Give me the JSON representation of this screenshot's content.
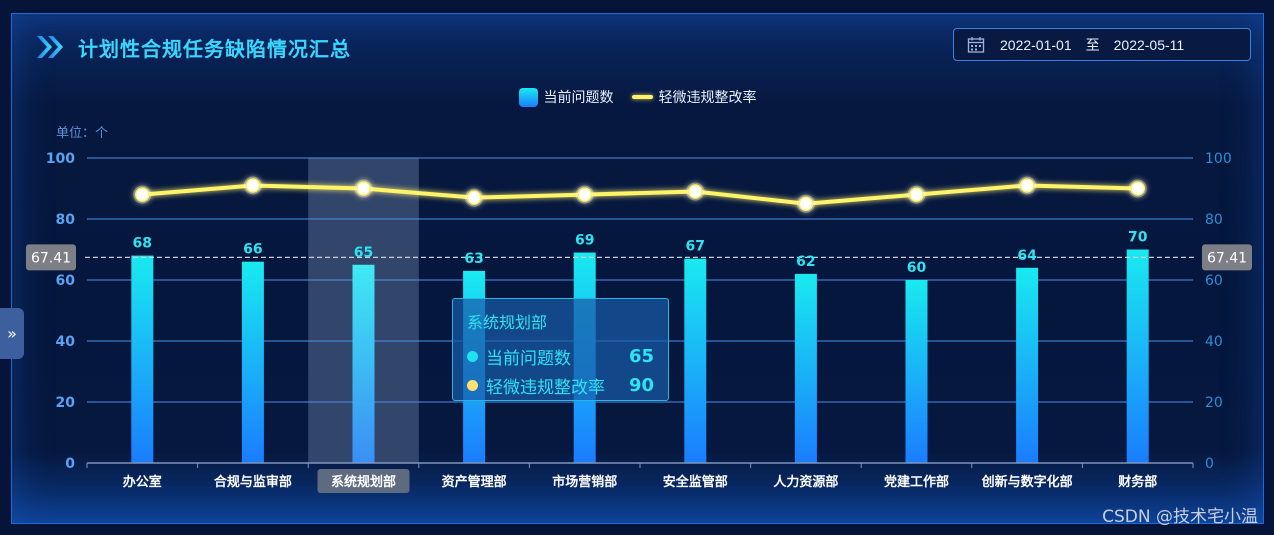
{
  "header": {
    "title": "计划性合规任务缺陷情况汇总"
  },
  "date_range": {
    "start": "2022-01-01",
    "separator": "至",
    "end": "2022-05-11"
  },
  "unit_label": "单位：个",
  "side_toggle": "»",
  "watermark": "CSDN @技术宅小温",
  "tooltip": {
    "category": "系统规划部",
    "rows": [
      {
        "label": "当前问题数",
        "value": "65",
        "dot_color": "#1fe3ef"
      },
      {
        "label": "轻微违规整改率",
        "value": "90",
        "dot_color": "#ffe071"
      }
    ]
  },
  "colors": {
    "bar_top": "#19eaf0",
    "bar_bottom": "#1a7dff",
    "line": "#fff36a",
    "label_cyan": "#2fe3f2",
    "axis_left": "#5ca2f2",
    "axis_right": "#2a8fd8",
    "highlight": "#3b4d72"
  },
  "chart_data": {
    "type": "bar",
    "categories": [
      "办公室",
      "合规与监审部",
      "系统规划部",
      "资产管理部",
      "市场营销部",
      "安全监管部",
      "人力资源部",
      "党建工作部",
      "创新与数字化部",
      "财务部"
    ],
    "series": [
      {
        "name": "当前问题数",
        "type": "bar",
        "values": [
          68,
          66,
          65,
          63,
          69,
          67,
          62,
          60,
          64,
          70
        ]
      },
      {
        "name": "轻微违规整改率",
        "type": "line",
        "values": [
          88,
          91,
          90,
          87,
          88,
          89,
          85,
          88,
          91,
          90
        ]
      }
    ],
    "y_left": {
      "ylim": [
        0,
        100
      ],
      "ticks": [
        0,
        20,
        40,
        60,
        80,
        100
      ]
    },
    "y_right": {
      "ylim": [
        0,
        100
      ],
      "ticks": [
        0,
        20,
        40,
        60,
        80,
        100
      ]
    },
    "average_line": {
      "value": 67.41,
      "label": "67.41"
    },
    "highlighted_category": "系统规划部",
    "legend": {
      "position": "top-center",
      "entries": [
        "当前问题数",
        "轻微违规整改率"
      ]
    },
    "grid": true
  }
}
